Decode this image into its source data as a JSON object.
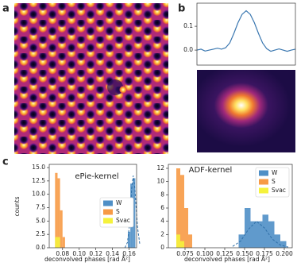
{
  "panel_labels": [
    "a",
    "b",
    "c"
  ],
  "chart_data": [
    {
      "type": "line",
      "color": "#3a77b0",
      "categories": [
        null,
        null,
        null,
        null,
        null,
        null,
        null,
        null,
        null,
        null,
        null,
        null,
        null,
        null,
        null,
        null,
        null,
        null,
        null,
        null,
        null,
        null,
        null,
        null,
        null
      ],
      "values": [
        0,
        0.004,
        -0.004,
        0,
        0.004,
        0.008,
        0.004,
        0.01,
        0.03,
        0.07,
        0.115,
        0.15,
        0.165,
        0.15,
        0.115,
        0.07,
        0.03,
        0.006,
        -0.005,
        0,
        0.005,
        0,
        -0.005,
        0,
        0.004
      ],
      "ylim": [
        -0.063,
        0.197
      ],
      "yticks": [
        {
          "value": 0,
          "label": "0.0"
        },
        0.1
      ]
    },
    {
      "type": "histogram",
      "title": "ePie-kernel",
      "xlabel": "deconvolved phases [rad Å²]",
      "ylabel": "counts",
      "legend": "center right",
      "xlim": [
        0.064,
        0.169
      ],
      "xticks": [
        0.08,
        {
          "value": 0.1,
          "label": "0.10"
        },
        0.12,
        0.14,
        0.16
      ],
      "ylim": [
        0,
        15.6
      ],
      "yticks": [
        {
          "value": 0,
          "label": "0.0"
        },
        2.5,
        {
          "value": 5,
          "label": "5.0"
        },
        7.5,
        {
          "value": 10,
          "label": "10.0"
        },
        12.5,
        {
          "value": 15,
          "label": "15.0"
        }
      ],
      "series": [
        {
          "name": "W",
          "color": "#4f8fc6",
          "bins": [
            0.1585,
            0.1615,
            0.1645,
            0.1675
          ],
          "values": [
            3,
            12,
            13
          ]
        },
        {
          "name": "S",
          "color": "#f79a45",
          "bins": [
            0.071,
            0.074,
            0.077,
            0.08,
            0.083
          ],
          "values": [
            14,
            13,
            7,
            2
          ]
        },
        {
          "name": "Svac",
          "color": "#f5f23c",
          "bins": [
            0.071,
            0.074,
            0.077
          ],
          "values": [
            2,
            2
          ]
        }
      ],
      "fit": {
        "color": "#2f6fa8",
        "x": [
          0.155,
          0.158,
          0.161,
          0.163,
          0.165,
          0.167,
          0.17,
          0.173
        ],
        "values": [
          0,
          1,
          5,
          11,
          13.5,
          11,
          4,
          0.5
        ]
      }
    },
    {
      "type": "histogram",
      "title": "ADF-kernel",
      "xlabel": "deconvolved phases [rad Å²]",
      "legend": "upper right",
      "xlim": [
        0.054,
        0.21
      ],
      "xticks": [
        0.075,
        {
          "value": 0.1,
          "label": "0.100"
        },
        0.125,
        {
          "value": 0.15,
          "label": "0.150"
        },
        0.175,
        {
          "value": 0.2,
          "label": "0.200"
        }
      ],
      "ylim": [
        0,
        12.6
      ],
      "yticks": [
        0,
        2,
        4,
        6,
        8,
        10,
        12
      ],
      "series": [
        {
          "name": "W",
          "color": "#4f8fc6",
          "bins": [
            0.1425,
            0.15,
            0.1575,
            0.165,
            0.1725,
            0.18,
            0.1875,
            0.195,
            0.2025
          ],
          "values": [
            2,
            6,
            4,
            4,
            5,
            4,
            2,
            1
          ]
        },
        {
          "name": "S",
          "color": "#f79a45",
          "bins": [
            0.064,
            0.069,
            0.074,
            0.079,
            0.084
          ],
          "values": [
            12,
            11,
            6,
            2
          ]
        },
        {
          "name": "Svac",
          "color": "#f5f23c",
          "bins": [
            0.064,
            0.069,
            0.074
          ],
          "values": [
            2,
            1
          ]
        }
      ],
      "fit": {
        "color": "#2f6fa8",
        "x": [
          0.135,
          0.145,
          0.155,
          0.165,
          0.175,
          0.185,
          0.195,
          0.205
        ],
        "values": [
          0.2,
          1,
          2.8,
          4,
          3,
          1.3,
          0.4,
          0.1
        ]
      }
    }
  ]
}
